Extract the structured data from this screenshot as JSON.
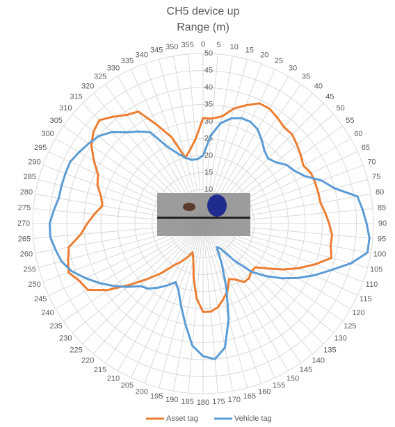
{
  "chart_data": {
    "type": "radar",
    "title": "CH5 device up",
    "subtitle": "Range (m)",
    "categories": [
      "0",
      "5",
      "10",
      "15",
      "20",
      "25",
      "30",
      "35",
      "40",
      "45",
      "50",
      "55",
      "60",
      "65",
      "70",
      "75",
      "80",
      "85",
      "90",
      "95",
      "100",
      "105",
      "110",
      "115",
      "120",
      "125",
      "130",
      "135",
      "140",
      "145",
      "150",
      "155",
      "160",
      "165",
      "170",
      "175",
      "180",
      "185",
      "190",
      "195",
      "200",
      "205",
      "210",
      "215",
      "220",
      "225",
      "230",
      "235",
      "240",
      "245",
      "250",
      "255",
      "260",
      "265",
      "270",
      "275",
      "280",
      "285",
      "290",
      "295",
      "300",
      "305",
      "310",
      "315",
      "320",
      "325",
      "330",
      "335",
      "340",
      "345",
      "350",
      "355"
    ],
    "series": [
      {
        "name": "Asset tag",
        "color": "#ed7d31",
        "values": [
          31,
          31,
          32,
          35,
          37,
          39,
          39,
          38,
          37,
          37,
          36,
          35,
          34,
          35,
          35,
          35,
          35,
          36,
          37,
          38,
          38,
          39,
          35,
          31,
          27,
          23,
          20,
          20,
          21,
          21,
          19,
          18,
          21,
          23,
          25,
          26,
          26,
          22,
          16,
          11,
          9,
          11,
          13,
          15,
          19,
          23,
          28,
          34,
          39,
          40,
          42,
          41,
          40,
          36,
          34,
          32,
          30,
          31,
          33,
          34,
          37,
          40,
          42,
          43,
          41,
          39,
          38,
          32,
          27,
          20,
          22,
          25
        ]
      },
      {
        "name": "Vehicle tag",
        "color": "#5b9bd5",
        "values": [
          20,
          26,
          30,
          32,
          33,
          33,
          32,
          30,
          28,
          27,
          28,
          30,
          31,
          33,
          37,
          40,
          46,
          47,
          48,
          49,
          49,
          45,
          40,
          36,
          32,
          28,
          24,
          20,
          14,
          9,
          8,
          13,
          20,
          29,
          37,
          40,
          39,
          36,
          30,
          25,
          21,
          19,
          21,
          23,
          25,
          26,
          29,
          32,
          35,
          38,
          41,
          43,
          44,
          45,
          45,
          44,
          43,
          43,
          43,
          43,
          42,
          41,
          40,
          38,
          35,
          33,
          31,
          25,
          22,
          20,
          19,
          19
        ]
      }
    ],
    "ylim": [
      0,
      50
    ],
    "yticks": [
      10,
      15,
      20,
      25,
      30,
      35,
      40,
      45,
      50
    ],
    "grid": true,
    "legend": "bottom"
  }
}
